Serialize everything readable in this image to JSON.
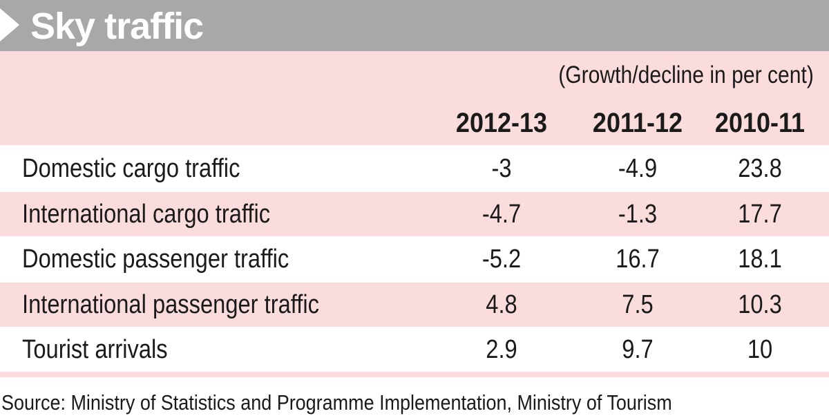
{
  "chart_data": {
    "type": "table",
    "title": "Sky traffic",
    "unit_note": "(Growth/decline  in per cent)",
    "columns": [
      "2012-13",
      "2011-12",
      "2010-11"
    ],
    "rows": [
      {
        "label": "Domestic cargo traffic",
        "values": [
          "-3",
          "-4.9",
          "23.8"
        ]
      },
      {
        "label": "International cargo traffic",
        "values": [
          "-4.7",
          "-1.3",
          "17.7"
        ]
      },
      {
        "label": "Domestic passenger traffic",
        "values": [
          "-5.2",
          "16.7",
          "18.1"
        ]
      },
      {
        "label": "International passenger traffic",
        "values": [
          "4.8",
          "7.5",
          "10.3"
        ]
      },
      {
        "label": "Tourist arrivals",
        "values": [
          "2.9",
          "9.7",
          "10"
        ]
      }
    ],
    "source": "Source: Ministry of Statistics and Programme Implementation, Ministry of Tourism"
  },
  "colors": {
    "title_bar": "#a8a8a8",
    "row_alt": "#fbdcdc",
    "text": "#1a1a1a"
  }
}
